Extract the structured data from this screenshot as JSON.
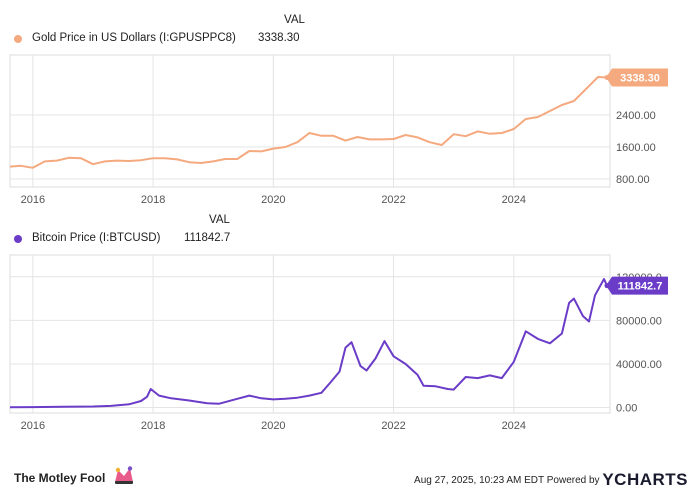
{
  "legend_header": "VAL",
  "footer": {
    "brand": "The Motley Fool",
    "timestamp": "Aug 27, 2025, 10:23 AM EDT",
    "powered_by": "Powered by",
    "ycharts": "YCHARTS"
  },
  "colors": {
    "gold": "#f5a97f",
    "bitcoin": "#6a3cc8",
    "grid": "#e4e4e4",
    "axis_text": "#555555"
  },
  "chart_data": [
    {
      "type": "line",
      "series": [
        {
          "name": "Gold Price in US Dollars (I:GPUSPPC8)",
          "last_value_label": "3338.30",
          "x": [
            2015.62,
            2015.8,
            2016.0,
            2016.2,
            2016.4,
            2016.6,
            2016.8,
            2017.0,
            2017.2,
            2017.4,
            2017.6,
            2017.8,
            2018.0,
            2018.2,
            2018.4,
            2018.6,
            2018.8,
            2019.0,
            2019.2,
            2019.4,
            2019.6,
            2019.8,
            2020.0,
            2020.2,
            2020.4,
            2020.6,
            2020.8,
            2021.0,
            2021.2,
            2021.4,
            2021.6,
            2021.8,
            2022.0,
            2022.2,
            2022.4,
            2022.6,
            2022.8,
            2023.0,
            2023.2,
            2023.4,
            2023.6,
            2023.8,
            2024.0,
            2024.2,
            2024.4,
            2024.6,
            2024.8,
            2025.0,
            2025.2,
            2025.4,
            2025.55
          ],
          "values": [
            1110,
            1130,
            1080,
            1240,
            1260,
            1330,
            1320,
            1170,
            1240,
            1260,
            1250,
            1270,
            1320,
            1320,
            1290,
            1220,
            1200,
            1240,
            1300,
            1300,
            1500,
            1490,
            1560,
            1600,
            1720,
            1950,
            1880,
            1880,
            1760,
            1850,
            1790,
            1790,
            1800,
            1900,
            1840,
            1720,
            1650,
            1920,
            1870,
            1990,
            1930,
            1950,
            2050,
            2300,
            2350,
            2500,
            2650,
            2750,
            3050,
            3350,
            3338.3
          ],
          "color": "#f5a97f"
        }
      ],
      "xlim": [
        2015.62,
        2025.6
      ],
      "ylim": [
        600,
        3900
      ],
      "y_ticks": [
        800,
        1600,
        2400
      ],
      "y_tick_labels": [
        "800.00",
        "1600.00",
        "2400.00"
      ],
      "x_ticks": [
        2016,
        2018,
        2020,
        2022,
        2024
      ],
      "x_tick_labels": [
        "2016",
        "2018",
        "2020",
        "2022",
        "2024"
      ],
      "grid": true,
      "legend_position": "top-left"
    },
    {
      "type": "line",
      "series": [
        {
          "name": "Bitcoin Price (I:BTCUSD)",
          "last_value_label": "111842.7",
          "x": [
            2015.62,
            2016.0,
            2016.5,
            2017.0,
            2017.3,
            2017.6,
            2017.8,
            2017.9,
            2017.96,
            2018.1,
            2018.3,
            2018.6,
            2018.9,
            2019.1,
            2019.4,
            2019.6,
            2019.8,
            2020.0,
            2020.2,
            2020.4,
            2020.6,
            2020.8,
            2020.95,
            2021.1,
            2021.2,
            2021.3,
            2021.45,
            2021.55,
            2021.7,
            2021.85,
            2022.0,
            2022.2,
            2022.4,
            2022.5,
            2022.7,
            2022.9,
            2023.0,
            2023.2,
            2023.4,
            2023.6,
            2023.8,
            2024.0,
            2024.2,
            2024.4,
            2024.6,
            2024.8,
            2024.92,
            2025.0,
            2025.15,
            2025.25,
            2025.35,
            2025.5,
            2025.55
          ],
          "values": [
            280,
            420,
            650,
            1000,
            1500,
            3000,
            6000,
            10000,
            17000,
            11000,
            8500,
            6500,
            4000,
            3500,
            8000,
            11000,
            8500,
            7500,
            8000,
            9000,
            11000,
            13500,
            23000,
            33000,
            55000,
            60000,
            38000,
            34000,
            45000,
            61000,
            47000,
            40000,
            30000,
            20000,
            19500,
            17000,
            16500,
            28000,
            27000,
            29500,
            27000,
            42000,
            70000,
            63000,
            59000,
            68000,
            96000,
            100000,
            84000,
            79000,
            103000,
            118000,
            111842.7
          ],
          "color": "#6a3cc8"
        }
      ],
      "xlim": [
        2015.62,
        2025.6
      ],
      "ylim": [
        -5000,
        140000
      ],
      "y_ticks": [
        0,
        40000,
        80000,
        120000
      ],
      "y_tick_labels": [
        "0.00",
        "40000.00",
        "80000.00",
        "120000.0"
      ],
      "x_ticks": [
        2016,
        2018,
        2020,
        2022,
        2024
      ],
      "x_tick_labels": [
        "2016",
        "2018",
        "2020",
        "2022",
        "2024"
      ],
      "grid": true,
      "legend_position": "top-left"
    }
  ]
}
